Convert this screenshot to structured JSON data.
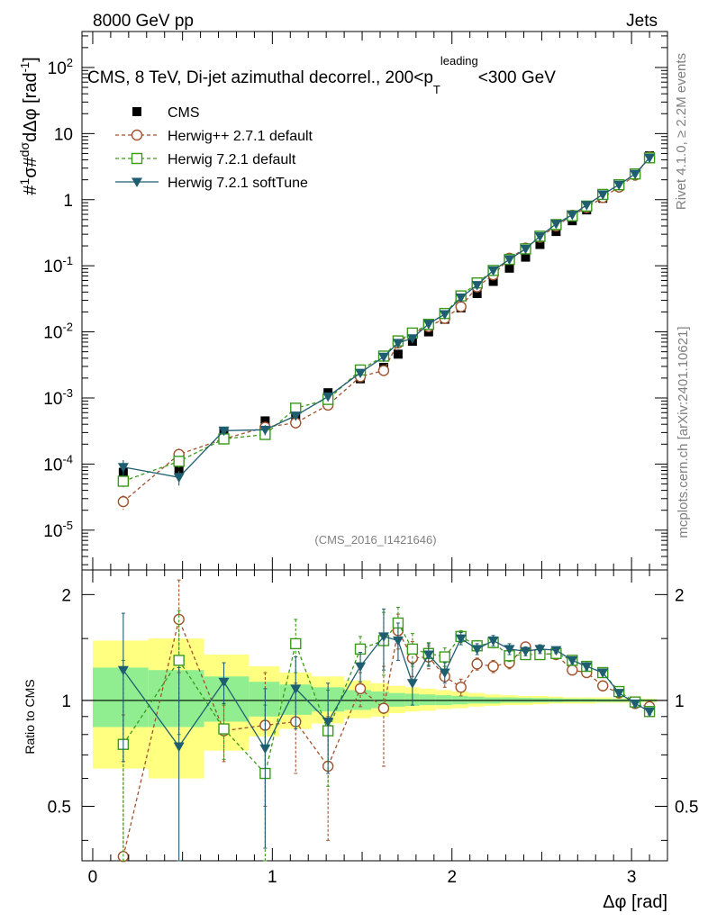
{
  "header": {
    "left": "8000 GeV pp",
    "right": "Jets"
  },
  "title": {
    "main": "CMS, 8 TeV, Di-jet azimuthal decorrel., 200<p",
    "sub": "T",
    "sup": "leading",
    "tail": "<300 GeV"
  },
  "side_labels": {
    "rivet": "Rivet 4.1.0, ≥ 2.2M events",
    "mcplots": "mcplots.cern.ch [arXiv:2401.10621]"
  },
  "analysis_id": "(CMS_2016_I1421646)",
  "chart_data": {
    "type": "line",
    "title": "CMS, 8 TeV, Di-jet azimuthal decorrel., 200<pT leading<300 GeV",
    "xlabel": "Δφ [rad]",
    "ylabel": "1/σ dσ/dΔφ [rad⁻¹]",
    "ratio_ylabel": "Ratio to CMS",
    "xlim": [
      -0.06,
      3.2
    ],
    "ylim": [
      2.5e-06,
      350
    ],
    "yscale": "log",
    "ratio_ylim": [
      0.35,
      2.35
    ],
    "x_ticks": [
      "0",
      "1",
      "2",
      "3"
    ],
    "y_ticks": [
      "10⁻⁵",
      "10⁻⁴",
      "10⁻³",
      "10⁻²",
      "10⁻¹",
      "1",
      "10",
      "10²"
    ],
    "ratio_ticks": [
      "0.5",
      "1",
      "2"
    ],
    "legend": [
      "CMS",
      "Herwig++ 2.7.1 default",
      "Herwig 7.2.1 default",
      "Herwig 7.2.1 softTune"
    ],
    "colors": {
      "cms": "#000000",
      "herwigpp": "#a0522d",
      "h721def": "#3a9a1a",
      "h721soft": "#1f5e70",
      "band_inner": "#90ee90",
      "band_outer": "#ffff80"
    },
    "x": [
      0.17,
      0.48,
      0.73,
      0.96,
      1.13,
      1.31,
      1.49,
      1.62,
      1.7,
      1.78,
      1.87,
      1.96,
      2.05,
      2.14,
      2.23,
      2.32,
      2.41,
      2.49,
      2.58,
      2.67,
      2.75,
      2.84,
      2.93,
      3.02,
      3.1
    ],
    "series": [
      {
        "name": "CMS",
        "values": [
          7.5e-05,
          8.5e-05,
          0.0003,
          0.00045,
          0.0005,
          0.0012,
          0.00195,
          0.0029,
          0.0046,
          0.0072,
          0.01,
          0.0155,
          0.023,
          0.038,
          0.058,
          0.092,
          0.135,
          0.21,
          0.33,
          0.48,
          0.7,
          1.05,
          1.6,
          2.5,
          4.6
        ]
      },
      {
        "name": "Herwig++ 2.7.1 default",
        "values": [
          2.7e-05,
          0.00014,
          0.00024,
          0.00036,
          0.00042,
          0.00078,
          0.0021,
          0.0026,
          0.0068,
          0.0095,
          0.012,
          0.016,
          0.024,
          0.048,
          0.073,
          0.13,
          0.185,
          0.27,
          0.4,
          0.58,
          0.76,
          1.08,
          1.55,
          2.35,
          4.4
        ]
      },
      {
        "name": "Herwig 7.2.1 default",
        "values": [
          5.5e-05,
          0.00011,
          0.00024,
          0.00028,
          0.0007,
          0.00095,
          0.00265,
          0.0043,
          0.0073,
          0.0096,
          0.013,
          0.019,
          0.035,
          0.055,
          0.085,
          0.125,
          0.18,
          0.28,
          0.42,
          0.57,
          0.8,
          1.2,
          1.68,
          2.45,
          4.3
        ]
      },
      {
        "name": "Herwig 7.2.1 softTune",
        "values": [
          9e-05,
          6.3e-05,
          0.00032,
          0.00033,
          0.00054,
          0.00105,
          0.0024,
          0.0042,
          0.0068,
          0.008,
          0.0132,
          0.0185,
          0.033,
          0.051,
          0.085,
          0.125,
          0.18,
          0.28,
          0.43,
          0.59,
          0.83,
          1.2,
          1.68,
          2.45,
          4.3
        ]
      }
    ],
    "ratios": [
      {
        "name": "Herwig++ 2.7.1 default",
        "values": [
          0.36,
          1.7,
          0.82,
          0.85,
          0.87,
          0.65,
          1.08,
          0.95,
          1.58,
          1.32,
          1.33,
          1.17,
          1.09,
          1.27,
          1.25,
          1.28,
          1.42,
          1.36,
          1.35,
          1.22,
          1.2,
          1.1,
          1.05,
          0.98,
          0.96
        ]
      },
      {
        "name": "Herwig 7.2.1 default",
        "values": [
          0.75,
          1.3,
          0.83,
          0.62,
          1.45,
          0.82,
          1.4,
          1.48,
          1.66,
          1.4,
          1.36,
          1.33,
          1.52,
          1.43,
          1.46,
          1.34,
          1.35,
          1.35,
          1.36,
          1.3,
          1.25,
          1.2,
          1.06,
          0.99,
          0.93
        ]
      },
      {
        "name": "Herwig 7.2.1 softTune",
        "values": [
          1.22,
          0.74,
          1.13,
          0.73,
          1.08,
          0.87,
          1.25,
          1.52,
          1.48,
          1.12,
          1.35,
          1.2,
          1.5,
          1.4,
          1.48,
          1.4,
          1.38,
          1.4,
          1.39,
          1.3,
          1.25,
          1.2,
          1.05,
          0.98,
          0.93
        ]
      }
    ],
    "ratio_errors": [
      0.55,
      0.5,
      0.15,
      0.35,
      0.25,
      0.25,
      0.12,
      0.3,
      0.18,
      0.15,
      0.1,
      0.08,
      0.06,
      0.05,
      0.05,
      0.05,
      0.04,
      0.04,
      0.03,
      0.03,
      0.03,
      0.02,
      0.02,
      0.02,
      0.02
    ],
    "band_edges": [
      0.0,
      0.31,
      0.62,
      0.87,
      1.04,
      1.22,
      1.4,
      1.55,
      1.65,
      1.74,
      1.82,
      1.91,
      2.0,
      2.09,
      2.18,
      2.27,
      2.36,
      2.45,
      2.54,
      2.62,
      2.71,
      2.8,
      2.89,
      2.98,
      3.06,
      3.14
    ],
    "band_inner_up": [
      0.24,
      0.22,
      0.17,
      0.13,
      0.11,
      0.09,
      0.07,
      0.06,
      0.05,
      0.045,
      0.04,
      0.035,
      0.03,
      0.025,
      0.02,
      0.02,
      0.018,
      0.016,
      0.014,
      0.012,
      0.012,
      0.01,
      0.01,
      0.01,
      0.008
    ],
    "band_inner_dn": [
      0.16,
      0.16,
      0.13,
      0.1,
      0.09,
      0.07,
      0.06,
      0.05,
      0.04,
      0.035,
      0.03,
      0.03,
      0.025,
      0.02,
      0.02,
      0.015,
      0.015,
      0.013,
      0.012,
      0.01,
      0.01,
      0.01,
      0.01,
      0.008,
      0.008
    ],
    "band_outer_up": [
      0.48,
      0.5,
      0.35,
      0.25,
      0.2,
      0.17,
      0.14,
      0.12,
      0.1,
      0.09,
      0.08,
      0.07,
      0.06,
      0.05,
      0.04,
      0.035,
      0.03,
      0.03,
      0.025,
      0.02,
      0.02,
      0.02,
      0.015,
      0.015,
      0.012
    ],
    "band_outer_dn": [
      0.36,
      0.4,
      0.28,
      0.21,
      0.17,
      0.14,
      0.11,
      0.1,
      0.08,
      0.07,
      0.065,
      0.055,
      0.05,
      0.04,
      0.035,
      0.03,
      0.03,
      0.025,
      0.02,
      0.02,
      0.02,
      0.015,
      0.015,
      0.012,
      0.012
    ]
  }
}
